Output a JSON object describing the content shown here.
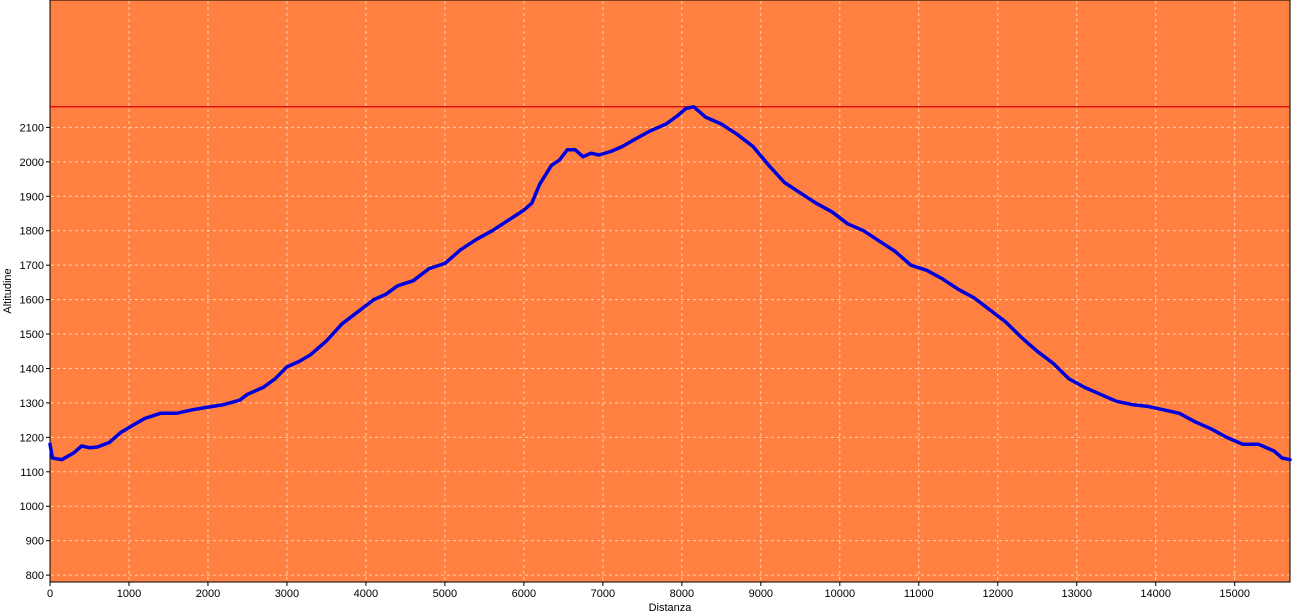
{
  "chart_data": {
    "type": "line",
    "xlabel": "Distanza",
    "ylabel": "Altitudine",
    "xlim": [
      0,
      15700
    ],
    "ylim": [
      780,
      2470
    ],
    "x_ticks": [
      0,
      1000,
      2000,
      3000,
      4000,
      5000,
      6000,
      7000,
      8000,
      9000,
      10000,
      11000,
      12000,
      13000,
      14000,
      15000
    ],
    "y_ticks": [
      800,
      900,
      1000,
      1100,
      1200,
      1300,
      1400,
      1500,
      1600,
      1700,
      1800,
      1900,
      2000,
      2100
    ],
    "grid": true,
    "reference_line": {
      "y": 2160,
      "color": "#dd0000"
    },
    "colors": {
      "background": "#ff8040",
      "line": "#0000dd",
      "grid": "#ffd0b0"
    },
    "series": [
      {
        "points": [
          [
            0,
            1180
          ],
          [
            30,
            1140
          ],
          [
            150,
            1135
          ],
          [
            300,
            1155
          ],
          [
            400,
            1175
          ],
          [
            500,
            1170
          ],
          [
            600,
            1172
          ],
          [
            750,
            1185
          ],
          [
            900,
            1215
          ],
          [
            1050,
            1235
          ],
          [
            1200,
            1255
          ],
          [
            1400,
            1270
          ],
          [
            1600,
            1270
          ],
          [
            1800,
            1280
          ],
          [
            2000,
            1288
          ],
          [
            2200,
            1295
          ],
          [
            2400,
            1308
          ],
          [
            2500,
            1325
          ],
          [
            2700,
            1345
          ],
          [
            2850,
            1370
          ],
          [
            3000,
            1405
          ],
          [
            3150,
            1420
          ],
          [
            3300,
            1440
          ],
          [
            3500,
            1480
          ],
          [
            3700,
            1530
          ],
          [
            3900,
            1565
          ],
          [
            4100,
            1600
          ],
          [
            4250,
            1615
          ],
          [
            4400,
            1640
          ],
          [
            4600,
            1655
          ],
          [
            4800,
            1690
          ],
          [
            5000,
            1705
          ],
          [
            5200,
            1745
          ],
          [
            5400,
            1775
          ],
          [
            5600,
            1800
          ],
          [
            5800,
            1830
          ],
          [
            6000,
            1860
          ],
          [
            6100,
            1880
          ],
          [
            6200,
            1935
          ],
          [
            6350,
            1990
          ],
          [
            6450,
            2005
          ],
          [
            6550,
            2035
          ],
          [
            6650,
            2035
          ],
          [
            6750,
            2015
          ],
          [
            6850,
            2025
          ],
          [
            6950,
            2020
          ],
          [
            7100,
            2030
          ],
          [
            7250,
            2045
          ],
          [
            7400,
            2065
          ],
          [
            7600,
            2090
          ],
          [
            7800,
            2110
          ],
          [
            7950,
            2135
          ],
          [
            8050,
            2155
          ],
          [
            8150,
            2160
          ],
          [
            8300,
            2130
          ],
          [
            8500,
            2110
          ],
          [
            8700,
            2080
          ],
          [
            8900,
            2045
          ],
          [
            9100,
            1990
          ],
          [
            9300,
            1940
          ],
          [
            9500,
            1910
          ],
          [
            9700,
            1880
          ],
          [
            9900,
            1855
          ],
          [
            10100,
            1820
          ],
          [
            10300,
            1800
          ],
          [
            10500,
            1770
          ],
          [
            10700,
            1740
          ],
          [
            10900,
            1700
          ],
          [
            11100,
            1685
          ],
          [
            11300,
            1660
          ],
          [
            11500,
            1630
          ],
          [
            11700,
            1605
          ],
          [
            11900,
            1570
          ],
          [
            12100,
            1535
          ],
          [
            12300,
            1490
          ],
          [
            12500,
            1450
          ],
          [
            12700,
            1415
          ],
          [
            12900,
            1370
          ],
          [
            13100,
            1345
          ],
          [
            13300,
            1325
          ],
          [
            13500,
            1305
          ],
          [
            13700,
            1295
          ],
          [
            13900,
            1290
          ],
          [
            14100,
            1280
          ],
          [
            14300,
            1270
          ],
          [
            14500,
            1245
          ],
          [
            14700,
            1225
          ],
          [
            14900,
            1200
          ],
          [
            15100,
            1180
          ],
          [
            15300,
            1180
          ],
          [
            15500,
            1160
          ],
          [
            15600,
            1140
          ],
          [
            15700,
            1135
          ]
        ]
      }
    ]
  }
}
